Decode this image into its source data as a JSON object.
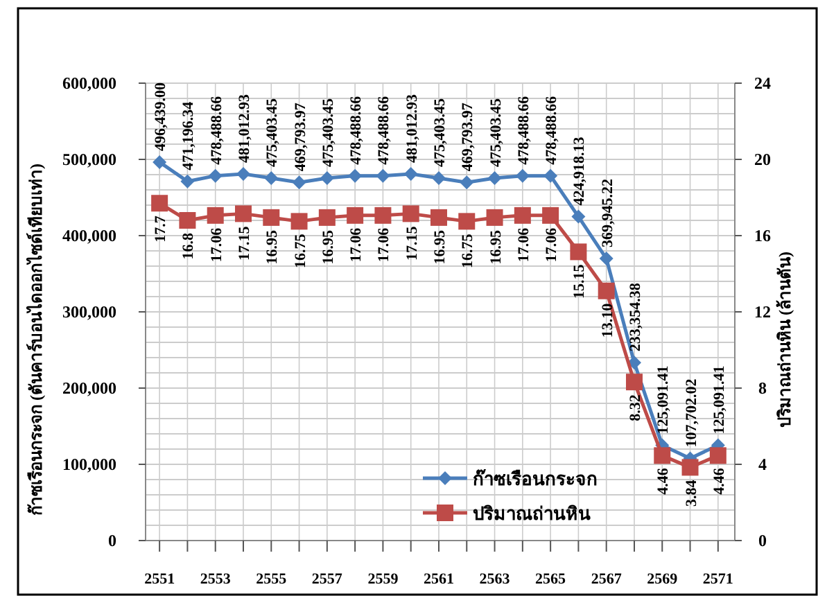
{
  "chart_data": {
    "type": "line",
    "ylabel": "ก๊าซเรือนกระจก (ตันคาร์บอนไดออกไซด์เทียบเท่า)",
    "y2label": "ปริมาณถ่านหิน (ล้านตัน)",
    "x": [
      2551,
      2552,
      2553,
      2554,
      2555,
      2556,
      2557,
      2558,
      2559,
      2560,
      2561,
      2562,
      2563,
      2564,
      2565,
      2566,
      2567,
      2568,
      2569,
      2570,
      2571
    ],
    "xlim": [
      2550.5,
      2571.6
    ],
    "xticks": [
      2551,
      {
        "value": 2552,
        "label": null
      },
      2553,
      {
        "value": 2554,
        "label": null
      },
      2555,
      {
        "value": 2556,
        "label": null
      },
      2557,
      {
        "value": 2558,
        "label": null
      },
      2559,
      {
        "value": 2560,
        "label": null
      },
      2561,
      {
        "value": 2562,
        "label": null
      },
      2563,
      {
        "value": 2564,
        "label": null
      },
      2565,
      {
        "value": 2566,
        "label": null
      },
      2567,
      {
        "value": 2568,
        "label": null
      },
      2569,
      {
        "value": 2570,
        "label": null
      },
      2571
    ],
    "ylim": [
      0,
      600000
    ],
    "yticks": [
      {
        "value": 0,
        "label": "0"
      },
      {
        "value": 20000,
        "label": null
      },
      {
        "value": 40000,
        "label": null
      },
      {
        "value": 60000,
        "label": null
      },
      {
        "value": 80000,
        "label": null
      },
      {
        "value": 100000,
        "label": "100,000"
      },
      {
        "value": 120000,
        "label": null
      },
      {
        "value": 140000,
        "label": null
      },
      {
        "value": 160000,
        "label": null
      },
      {
        "value": 180000,
        "label": null
      },
      {
        "value": 200000,
        "label": "200,000"
      },
      {
        "value": 220000,
        "label": null
      },
      {
        "value": 240000,
        "label": null
      },
      {
        "value": 260000,
        "label": null
      },
      {
        "value": 280000,
        "label": null
      },
      {
        "value": 300000,
        "label": "300,000"
      },
      {
        "value": 320000,
        "label": null
      },
      {
        "value": 340000,
        "label": null
      },
      {
        "value": 360000,
        "label": null
      },
      {
        "value": 380000,
        "label": null
      },
      {
        "value": 400000,
        "label": "400,000"
      },
      {
        "value": 420000,
        "label": null
      },
      {
        "value": 440000,
        "label": null
      },
      {
        "value": 460000,
        "label": null
      },
      {
        "value": 480000,
        "label": null
      },
      {
        "value": 500000,
        "label": "500,000"
      },
      {
        "value": 520000,
        "label": null
      },
      {
        "value": 540000,
        "label": null
      },
      {
        "value": 560000,
        "label": null
      },
      {
        "value": 580000,
        "label": null
      },
      {
        "value": 600000,
        "label": "600,000"
      }
    ],
    "y2lim": [
      0,
      24
    ],
    "y2ticks": [
      0,
      4,
      8,
      12,
      16,
      20,
      24
    ],
    "grid": true,
    "legend": "bottom",
    "line_style": "solid",
    "series": [
      {
        "name": "ก๊าซเรือนกระจก",
        "color": "#4a7ebb",
        "marker": "diamond",
        "values": [
          496439.0,
          471196.34,
          478488.66,
          481012.93,
          475403.45,
          469793.97,
          475403.45,
          478488.66,
          478488.66,
          481012.93,
          475403.45,
          469793.97,
          475403.45,
          478488.66,
          478488.66,
          424918.13,
          369945.22,
          233354.38,
          125091.41,
          107702.02,
          125091.41
        ],
        "value_labels": [
          "496,439.00",
          "471,196.34",
          "478,488.66",
          "481,012.93",
          "475,403.45",
          "469,793.97",
          "475,403.45",
          "478,488.66",
          "478,488.66",
          "481,012.93",
          "475,403.45",
          "469,793.97",
          "475,403.45",
          "478,488.66",
          "478,488.66",
          "424,918.13",
          "369,945.22",
          "233,354.38",
          "125,091.41",
          "107,702.02",
          "125,091.41"
        ]
      },
      {
        "name": "ปริมาณถ่านหิน",
        "color": "#be4b48",
        "marker": "square",
        "axis": "y2",
        "values": [
          17.7,
          16.8,
          17.06,
          17.15,
          16.95,
          16.75,
          16.95,
          17.06,
          17.06,
          17.15,
          16.95,
          16.75,
          16.95,
          17.06,
          17.06,
          15.15,
          13.1,
          8.32,
          4.46,
          3.84,
          4.46
        ],
        "value_labels": [
          "17.7",
          "16.8",
          "17.06",
          "17.15",
          "16.95",
          "16.75",
          "16.95",
          "17.06",
          "17.06",
          "17.15",
          "16.95",
          "16.75",
          "16.95",
          "17.06",
          "17.06",
          "15.15",
          "13.10",
          "8.32",
          "4.46",
          "3.84",
          "4.46"
        ]
      }
    ]
  }
}
